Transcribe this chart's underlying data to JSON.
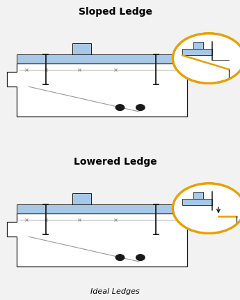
{
  "title1": "Sloped Ledge",
  "title2": "Lowered Ledge",
  "subtitle": "Ideal Ledges",
  "blue_color": "#a8c8e8",
  "orange_color": "#e8a000",
  "dark_color": "#1a1a1a",
  "gray_color": "#999999",
  "bg_color": "#f2f2f2",
  "white": "#ffffff"
}
